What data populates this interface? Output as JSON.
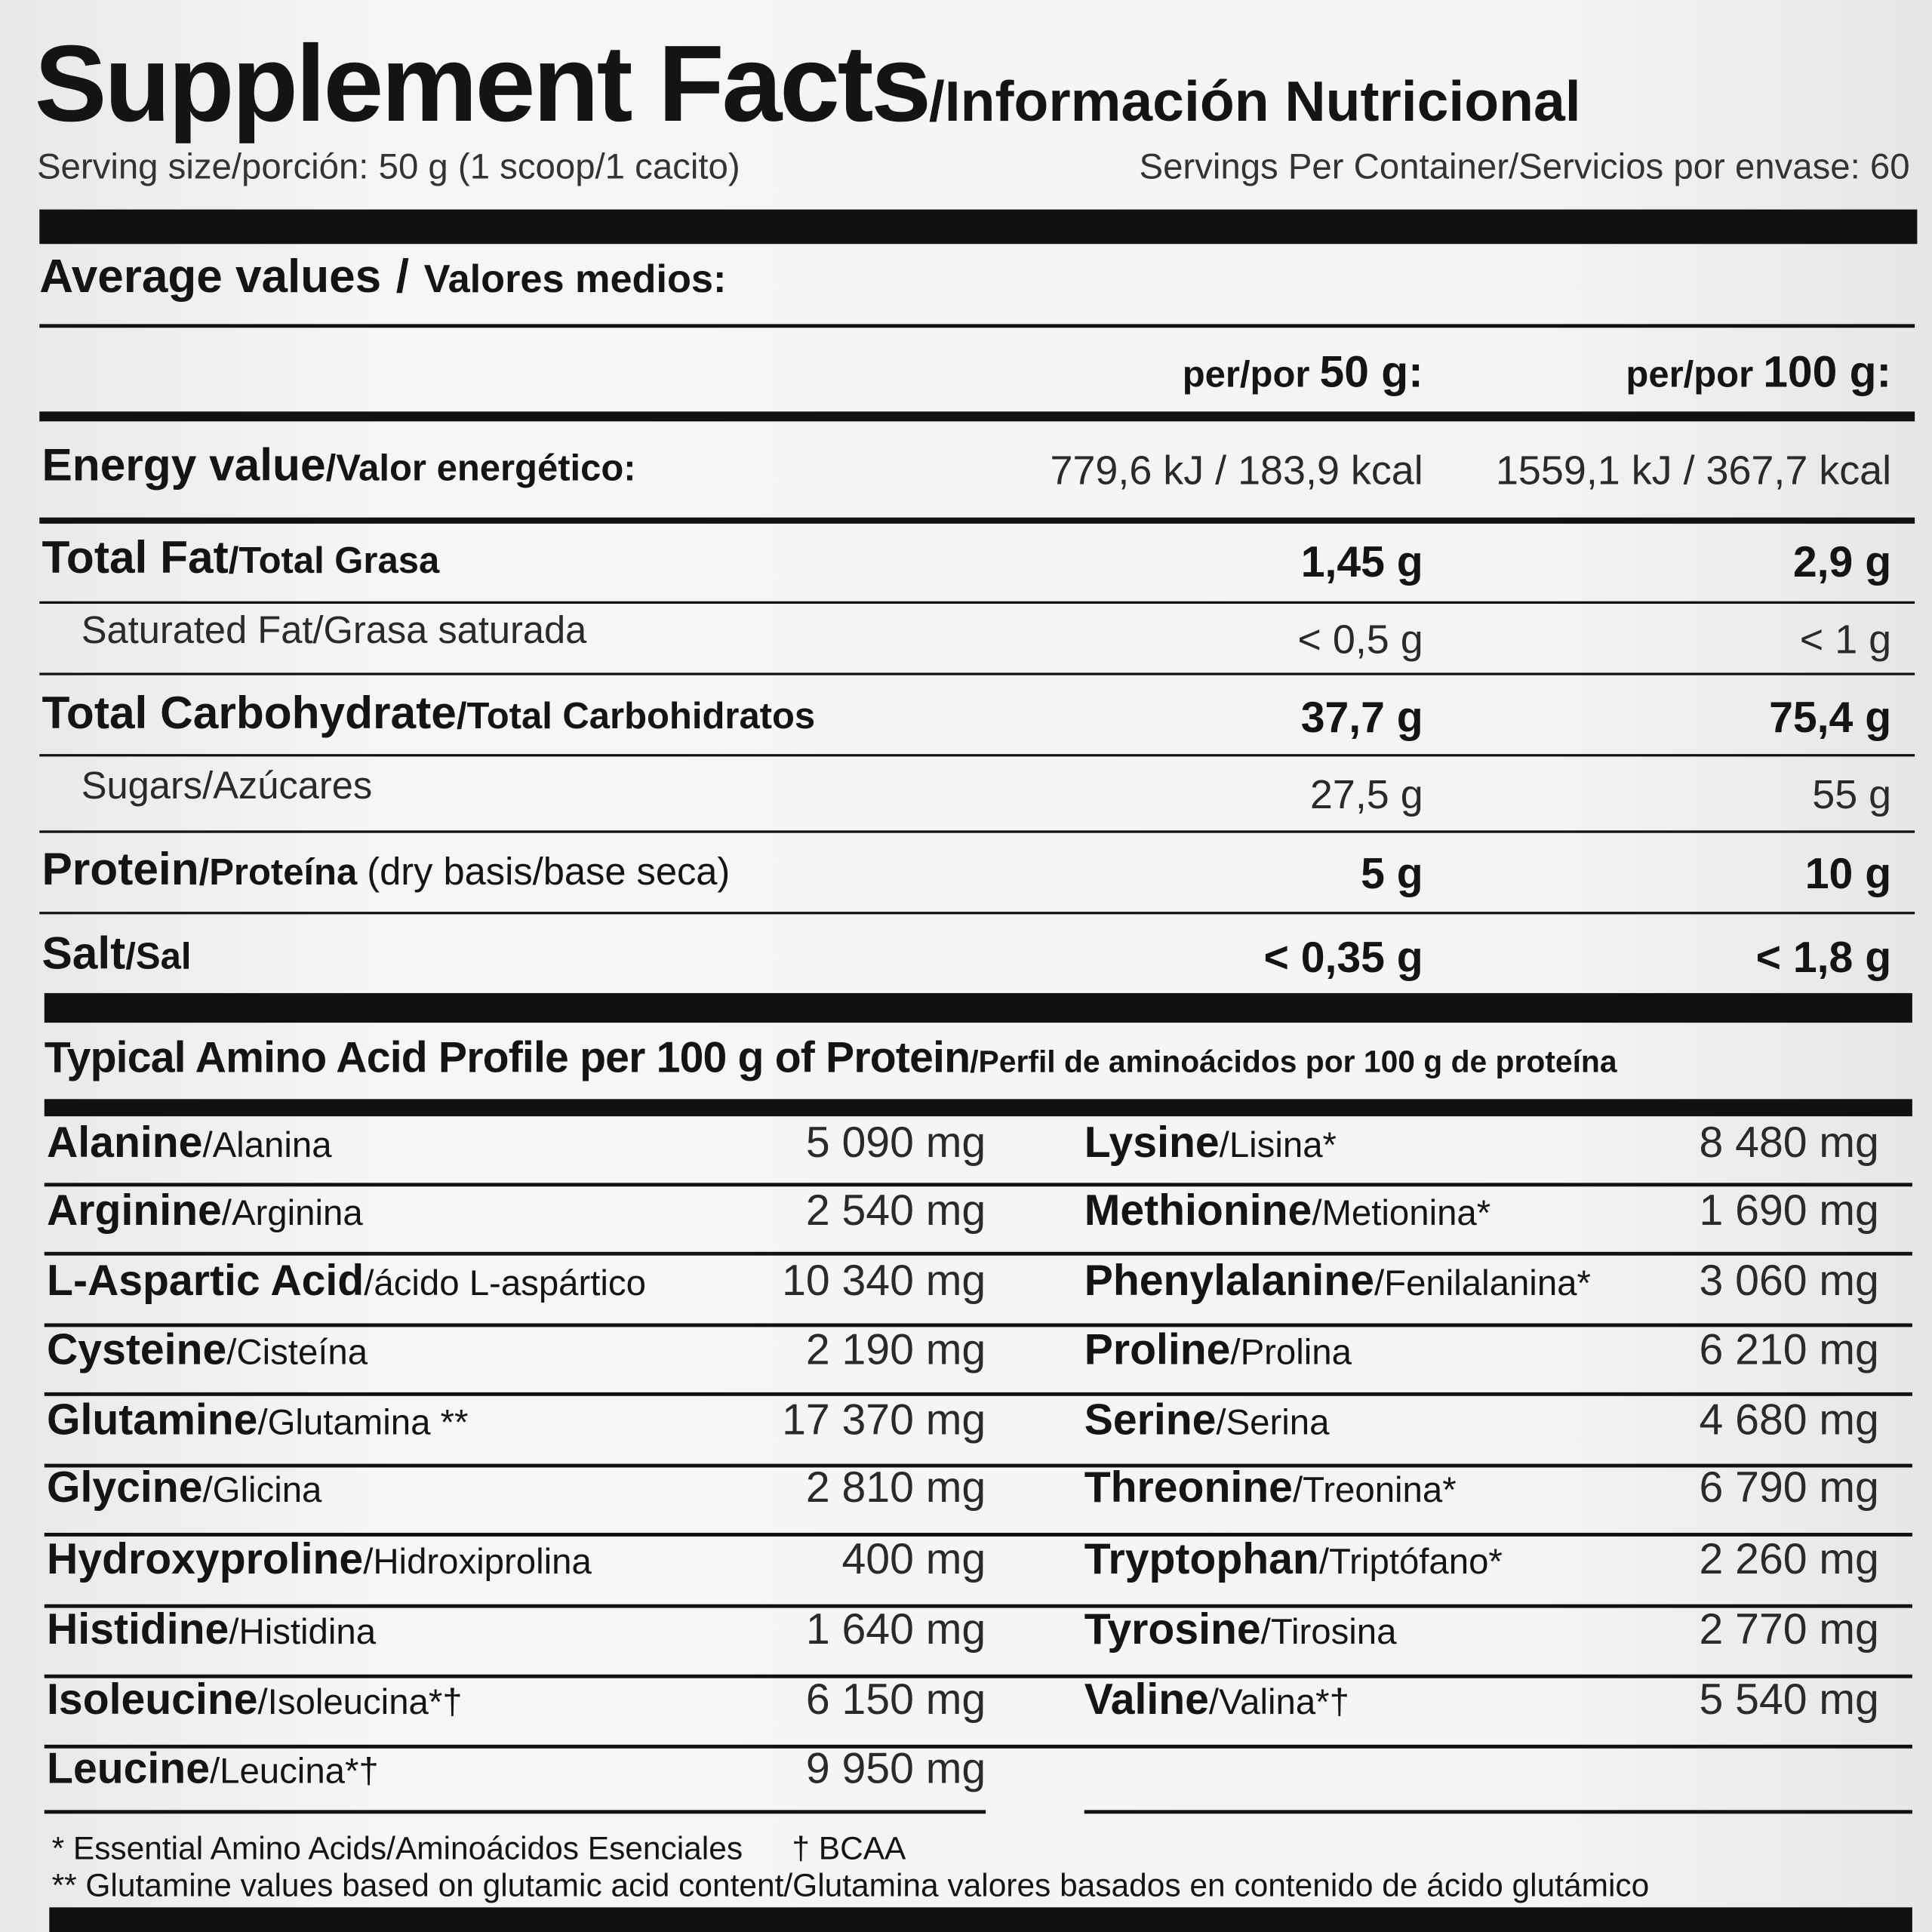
{
  "header": {
    "title": "Supplement Facts",
    "title_suffix": "/Información Nutricional",
    "serving_size": "Serving size/porción: 50 g (1 scoop/1 cacito)",
    "servings": "Servings Per Container/Servicios por envase: 60"
  },
  "nutrition": {
    "heading": "Average values",
    "heading_sep": "/",
    "heading_es": "Valores medios:",
    "columns": [
      "per/por",
      "50 g:",
      "per/por",
      "100 g:"
    ],
    "rows": [
      {
        "name": "Energy value",
        "name_es": "/Valor energético:",
        "per_50g": "779,6 kJ / 183,9 kcal",
        "per_100g": "1559,1 kJ / 367,7 kcal"
      },
      {
        "name": "Total Fat",
        "name_es": "/Total Grasa",
        "per_50g": "1,45 g",
        "per_100g": "2,9 g"
      },
      {
        "name": "Saturated Fat/Grasa saturada",
        "per_50g": "< 0,5 g",
        "per_100g": "< 1 g"
      },
      {
        "name": "Total Carbohydrate",
        "name_es": "/Total Carbohidratos",
        "per_50g": "37,7 g",
        "per_100g": "75,4 g"
      },
      {
        "name": "Sugars/Azúcares",
        "per_50g": "27,5 g",
        "per_100g": "55 g"
      },
      {
        "name": "Protein",
        "name_es": "/Proteína",
        "note": "(dry basis/base seca)",
        "per_50g": "5 g",
        "per_100g": "10 g"
      },
      {
        "name": "Salt",
        "name_es": "/Sal",
        "per_50g": "< 0,35 g",
        "per_100g": "< 1,8 g"
      }
    ]
  },
  "amino": {
    "heading": "Typical Amino Acid Profile per 100 g of Protein",
    "heading_es": "/Perfil de aminoácidos por 100 g de proteína",
    "left": [
      {
        "name": "Alanine",
        "name_es": "/Alanina",
        "amount": "5 090 mg"
      },
      {
        "name": "Arginine",
        "name_es": "/Arginina",
        "amount": "2 540 mg"
      },
      {
        "name": "L-Aspartic Acid",
        "name_es": "/ácido L-aspártico",
        "amount": "10 340 mg"
      },
      {
        "name": "Cysteine",
        "name_es": "/Cisteína",
        "amount": "2 190 mg"
      },
      {
        "name": "Glutamine",
        "name_es": "/Glutamina **",
        "amount": "17 370 mg"
      },
      {
        "name": "Glycine",
        "name_es": "/Glicina",
        "amount": "2 810 mg"
      },
      {
        "name": "Hydroxyproline",
        "name_es": "/Hidroxiprolina",
        "amount": "400 mg"
      },
      {
        "name": "Histidine",
        "name_es": "/Histidina",
        "amount": "1 640 mg"
      },
      {
        "name": "Isoleucine",
        "name_es": "/Isoleucina*†",
        "amount": "6 150 mg"
      },
      {
        "name": "Leucine",
        "name_es": "/Leucina*†",
        "amount": "9 950 mg"
      }
    ],
    "right": [
      {
        "name": "Lysine",
        "name_es": "/Lisina*",
        "amount": "8 480 mg"
      },
      {
        "name": "Methionine",
        "name_es": "/Metionina*",
        "amount": "1 690 mg"
      },
      {
        "name": "Phenylalanine",
        "name_es": "/Fenilalanina*",
        "amount": "3 060 mg"
      },
      {
        "name": "Proline",
        "name_es": "/Prolina",
        "amount": "6 210 mg"
      },
      {
        "name": "Serine",
        "name_es": "/Serina",
        "amount": "4 680 mg"
      },
      {
        "name": "Threonine",
        "name_es": "/Treonina*",
        "amount": "6 790 mg"
      },
      {
        "name": "Tryptophan",
        "name_es": "/Triptófano*",
        "amount": "2 260 mg"
      },
      {
        "name": "Tyrosine",
        "name_es": "/Tirosina",
        "amount": "2 770 mg"
      },
      {
        "name": "Valine",
        "name_es": "/Valina*†",
        "amount": "5 540 mg"
      }
    ]
  },
  "footnotes": {
    "essential": "* Essential Amino Acids/Aminoácidos Esenciales",
    "bcaa": "† BCAA",
    "glutamine": "** Glutamine values based on glutamic acid content/Glutamina valores basados en contenido de ácido glutámico"
  }
}
